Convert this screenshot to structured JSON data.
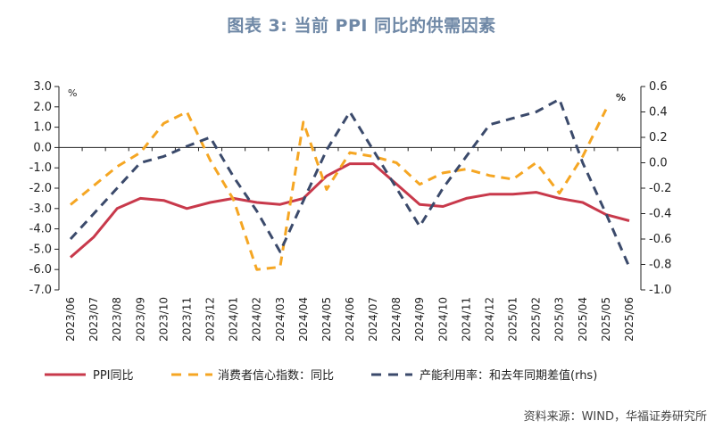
{
  "title": "图表 3:    当前 PPI 同比的供需因素",
  "source_note": "资料来源：WIND，华福证券研究所",
  "chart_data": {
    "type": "line",
    "x": [
      "2023/06",
      "2023/07",
      "2023/08",
      "2023/09",
      "2023/10",
      "2023/11",
      "2023/12",
      "2024/01",
      "2024/02",
      "2024/03",
      "2024/04",
      "2024/05",
      "2024/06",
      "2024/07",
      "2024/08",
      "2024/09",
      "2024/10",
      "2024/11",
      "2024/12",
      "2025/01",
      "2025/02",
      "2025/03",
      "2025/04",
      "2025/05",
      "2025/06"
    ],
    "left_axis": {
      "unit": "%",
      "ylim": [
        -7.0,
        3.0
      ],
      "ticks": [
        "3.0",
        "2.0",
        "1.0",
        "0.0",
        "-1.0",
        "-2.0",
        "-3.0",
        "-4.0",
        "-5.0",
        "-6.0",
        "-7.0"
      ]
    },
    "right_axis": {
      "unit": "%",
      "ylim": [
        -1.0,
        0.6
      ],
      "ticks": [
        "0.6",
        "0.4",
        "0.2",
        "0.0",
        "-0.2",
        "-0.4",
        "-0.6",
        "-0.8",
        "-1.0"
      ]
    },
    "series": [
      {
        "name": "PPI同比",
        "axis": "left",
        "style": "solid",
        "color": "#c8394b",
        "values": [
          -5.4,
          -4.4,
          -3.0,
          -2.5,
          -2.6,
          -3.0,
          -2.7,
          -2.5,
          -2.7,
          -2.8,
          -2.5,
          -1.4,
          -0.8,
          -0.8,
          -1.8,
          -2.8,
          -2.9,
          -2.5,
          -2.3,
          -2.3,
          -2.2,
          -2.5,
          -2.7,
          -3.3,
          -3.6
        ]
      },
      {
        "name": "消费者信心指数：同比",
        "axis": "right",
        "style": "dashed",
        "color": "#f5a623",
        "values": [
          -0.33,
          -0.18,
          -0.03,
          0.08,
          0.31,
          0.4,
          0.02,
          -0.29,
          -0.84,
          -0.82,
          0.32,
          -0.21,
          0.08,
          0.05,
          0.0,
          -0.17,
          -0.08,
          -0.05,
          -0.1,
          -0.13,
          0.0,
          -0.24,
          0.05,
          0.42,
          null
        ]
      },
      {
        "name": "产能利用率：和去年同期差值(rhs)",
        "axis": "right",
        "style": "dashed",
        "color": "#3b4a6b",
        "values": [
          -0.6,
          -0.4,
          -0.2,
          0.0,
          0.05,
          0.13,
          0.2,
          -0.11,
          -0.38,
          -0.7,
          -0.3,
          0.1,
          0.4,
          0.1,
          -0.2,
          -0.5,
          -0.2,
          0.05,
          0.3,
          0.35,
          0.4,
          0.5,
          0.0,
          -0.4,
          -0.82
        ]
      }
    ],
    "legend_position": "bottom",
    "grid": false
  }
}
